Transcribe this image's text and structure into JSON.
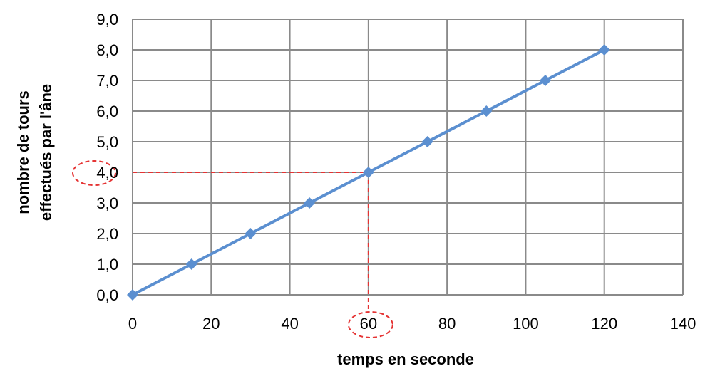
{
  "chart_data": {
    "type": "line",
    "title": "",
    "xlabel": "temps en seconde",
    "ylabel_lines": [
      "nombre de tours",
      "effectués par l'âne"
    ],
    "xlim": [
      0,
      140
    ],
    "ylim": [
      0,
      9
    ],
    "x_ticks": [
      0,
      20,
      40,
      60,
      80,
      100,
      120,
      140
    ],
    "y_ticks": [
      0,
      1,
      2,
      3,
      4,
      5,
      6,
      7,
      8,
      9
    ],
    "x_tick_labels": [
      "0",
      "20",
      "40",
      "60",
      "80",
      "100",
      "120",
      "140"
    ],
    "y_tick_labels": [
      "0,0",
      "1,0",
      "2,0",
      "3,0",
      "4,0",
      "5,0",
      "6,0",
      "7,0",
      "8,0",
      "9,0"
    ],
    "grid": true,
    "series": [
      {
        "x": [
          0,
          15,
          30,
          45,
          60,
          75,
          90,
          105,
          120
        ],
        "y": [
          0,
          1,
          2,
          3,
          4,
          5,
          6,
          7,
          8
        ],
        "color": "#5b8fd0",
        "marker": "diamond"
      }
    ],
    "annotation": {
      "x": 60,
      "y": 4,
      "color": "#e53333",
      "style": "dashed guide lines with dashed ellipses around the 60 and 4,0 tick labels"
    }
  }
}
